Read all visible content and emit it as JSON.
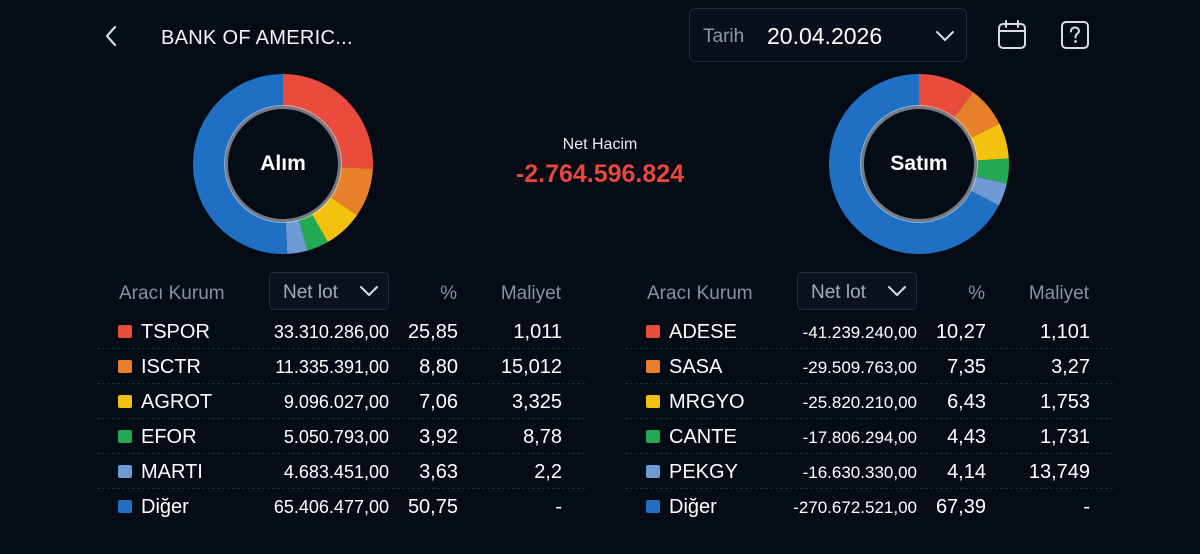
{
  "header": {
    "title": "BANK OF AMERIC...",
    "date_label": "Tarih",
    "date_value": "20.04.2026"
  },
  "colors": [
    "#e94b3c",
    "#e8802a",
    "#f2c20f",
    "#23a954",
    "#6e9bd2",
    "#1f6fc5"
  ],
  "net": {
    "label": "Net Hacim",
    "value": "-2.764.596.824",
    "color": "#e9473c"
  },
  "buy": {
    "donut_label": "Alım",
    "header": {
      "broker": "Aracı Kurum",
      "select": "Net lot",
      "pct": "%",
      "cost": "Maliyet"
    },
    "rows": [
      {
        "name": "TSPOR",
        "lot": "33.310.286,00",
        "pct": "25,85",
        "cost": "1,011"
      },
      {
        "name": "ISCTR",
        "lot": "11.335.391,00",
        "pct": "8,80",
        "cost": "15,012"
      },
      {
        "name": "AGROT",
        "lot": "9.096.027,00",
        "pct": "7,06",
        "cost": "3,325"
      },
      {
        "name": "EFOR",
        "lot": "5.050.793,00",
        "pct": "3,92",
        "cost": "8,78"
      },
      {
        "name": "MARTI",
        "lot": "4.683.451,00",
        "pct": "3,63",
        "cost": "2,2"
      },
      {
        "name": "Diğer",
        "lot": "65.406.477,00",
        "pct": "50,75",
        "cost": "-"
      }
    ]
  },
  "sell": {
    "donut_label": "Satım",
    "header": {
      "broker": "Aracı Kurum",
      "select": "Net lot",
      "pct": "%",
      "cost": "Maliyet"
    },
    "rows": [
      {
        "name": "ADESE",
        "lot": "-41.239.240,00",
        "pct": "10,27",
        "cost": "1,101"
      },
      {
        "name": "SASA",
        "lot": "-29.509.763,00",
        "pct": "7,35",
        "cost": "3,27"
      },
      {
        "name": "MRGYO",
        "lot": "-25.820.210,00",
        "pct": "6,43",
        "cost": "1,753"
      },
      {
        "name": "CANTE",
        "lot": "-17.806.294,00",
        "pct": "4,43",
        "cost": "1,731"
      },
      {
        "name": "PEKGY",
        "lot": "-16.630.330,00",
        "pct": "4,14",
        "cost": "13,749"
      },
      {
        "name": "Diğer",
        "lot": "-270.672.521,00",
        "pct": "67,39",
        "cost": "-"
      }
    ]
  },
  "icons": {
    "back": "chevron-left-icon",
    "date_dropdown": "chevron-down-icon",
    "calendar": "calendar-icon",
    "help": "help-icon"
  }
}
